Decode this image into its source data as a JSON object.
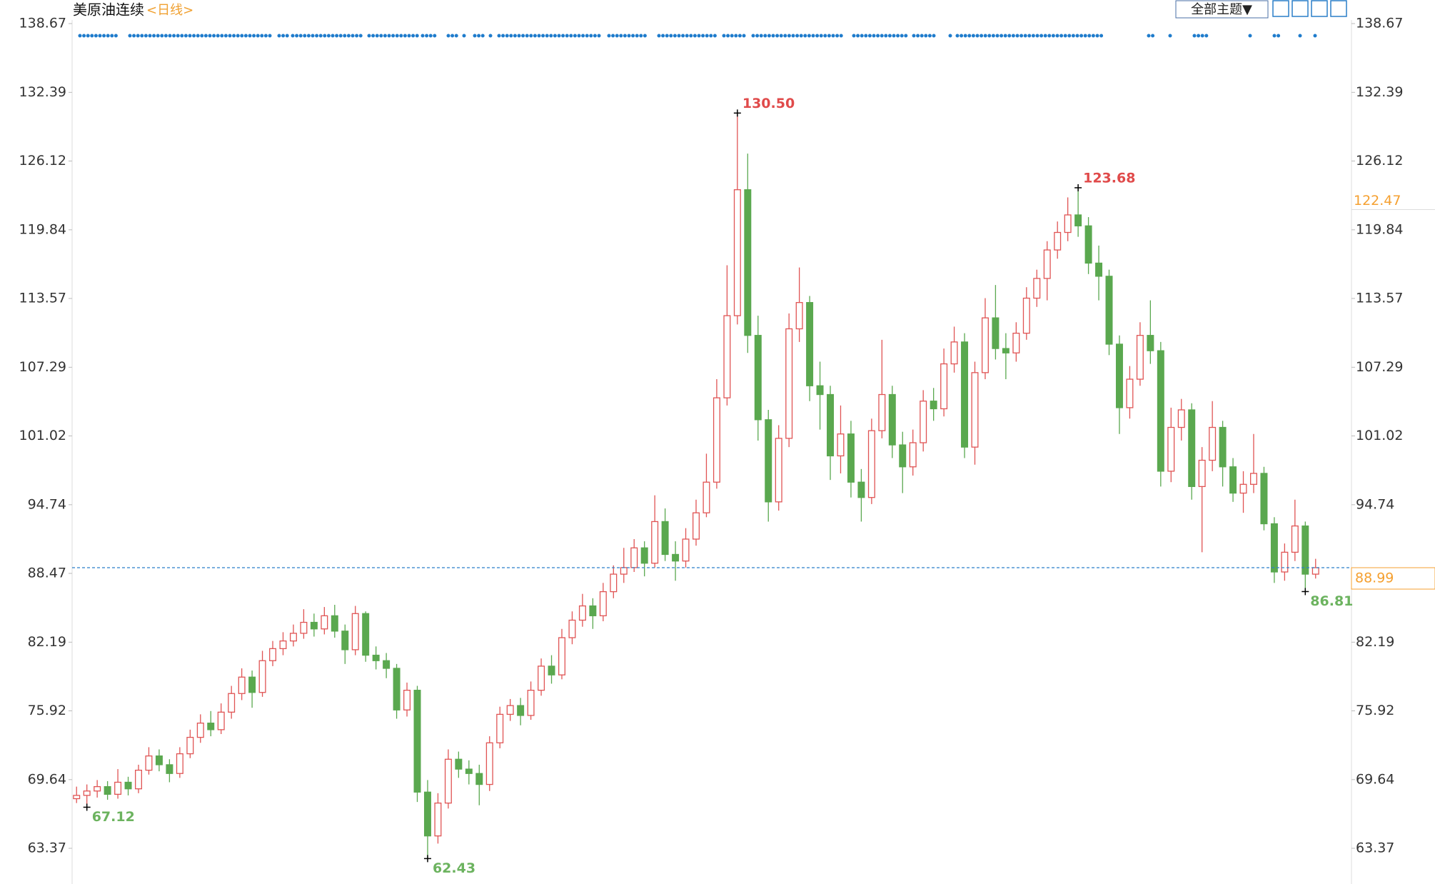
{
  "toolbar": {
    "button": "全部主题▼"
  },
  "chart_data": {
    "type": "candlestick",
    "title": "美原油连续",
    "subtitle": "<日线>",
    "up_color": "#e05454",
    "down_color": "#5aa84f",
    "high_label_color": "#e04a4a",
    "low_label_color": "#6cb35f",
    "price_line_color": "#2a7fc9",
    "marker_color": "#f5a030",
    "ylim": [
      60.37,
      139.91
    ],
    "yticks": [
      63.37,
      69.64,
      75.92,
      82.19,
      88.47,
      94.74,
      101.02,
      107.29,
      113.57,
      119.84,
      126.12,
      132.39,
      138.67
    ],
    "open": [
      67.9,
      68.2,
      68.6,
      69.0,
      68.3,
      69.4,
      68.8,
      70.5,
      71.8,
      71.0,
      70.2,
      72.0,
      73.5,
      74.8,
      74.2,
      75.8,
      77.5,
      79.0,
      77.6,
      80.5,
      81.6,
      82.3,
      83.0,
      84.0,
      83.4,
      84.6,
      83.2,
      81.5,
      84.8,
      81.0,
      80.5,
      79.8,
      76.0,
      77.8,
      68.5,
      64.5,
      67.5,
      71.5,
      70.6,
      70.2,
      69.2,
      73.0,
      75.6,
      76.4,
      75.5,
      77.8,
      80.0,
      79.2,
      82.6,
      84.2,
      85.5,
      84.6,
      86.8,
      88.4,
      89.0,
      90.8,
      89.4,
      93.2,
      90.2,
      89.6,
      91.6,
      94.0,
      96.8,
      104.5,
      112.0,
      123.5,
      110.2,
      102.5,
      95.0,
      100.8,
      110.8,
      113.2,
      105.6,
      104.8,
      99.2,
      101.2,
      96.8,
      95.4,
      101.5,
      104.8,
      100.2,
      98.2,
      100.4,
      104.2,
      103.5,
      107.6,
      109.6,
      100.0,
      106.8,
      111.8,
      109.0,
      108.6,
      110.4,
      113.6,
      115.4,
      118.0,
      119.6,
      121.2,
      120.2,
      116.8,
      115.6,
      109.4,
      103.6,
      106.2,
      110.2,
      108.8,
      97.8,
      101.8,
      103.4,
      96.4,
      98.8,
      101.8,
      98.2,
      95.8,
      96.6,
      97.6,
      93.0,
      88.6,
      90.4,
      92.8,
      88.4
    ],
    "high": [
      69.0,
      69.2,
      69.6,
      69.5,
      70.6,
      69.9,
      71.0,
      72.6,
      72.4,
      71.5,
      72.6,
      74.2,
      75.6,
      75.9,
      76.6,
      78.2,
      79.8,
      79.6,
      81.4,
      82.3,
      83.1,
      83.8,
      85.2,
      84.8,
      85.4,
      85.6,
      83.8,
      85.5,
      85.0,
      81.8,
      81.2,
      80.2,
      78.5,
      78.2,
      69.6,
      68.4,
      72.4,
      72.2,
      71.4,
      71.0,
      73.6,
      76.3,
      77.0,
      77.1,
      78.6,
      80.7,
      81.0,
      83.4,
      85.0,
      86.6,
      86.2,
      87.6,
      89.2,
      90.8,
      91.6,
      91.4,
      95.6,
      94.4,
      91.4,
      92.6,
      95.2,
      99.4,
      106.2,
      116.6,
      130.5,
      126.8,
      112.0,
      103.4,
      102.0,
      112.2,
      116.4,
      113.8,
      107.8,
      105.6,
      103.8,
      102.4,
      98.0,
      102.6,
      109.8,
      105.6,
      101.4,
      101.6,
      105.2,
      105.4,
      109.0,
      111.0,
      110.4,
      107.8,
      113.6,
      114.8,
      110.4,
      111.4,
      114.6,
      116.2,
      118.8,
      120.6,
      122.8,
      123.68,
      121.0,
      118.4,
      116.2,
      110.2,
      107.4,
      111.4,
      113.4,
      109.6,
      103.6,
      104.4,
      104.0,
      100.0,
      104.2,
      102.4,
      99.0,
      97.8,
      101.2,
      98.2,
      93.6,
      91.2,
      95.2,
      93.2,
      89.8
    ],
    "low": [
      67.5,
      67.12,
      68.0,
      67.8,
      67.9,
      68.2,
      68.4,
      70.1,
      70.4,
      69.4,
      69.8,
      71.6,
      73.0,
      73.6,
      73.8,
      75.2,
      76.9,
      76.2,
      77.2,
      80.0,
      81.0,
      81.8,
      82.5,
      82.7,
      82.9,
      82.6,
      80.2,
      81.0,
      80.4,
      79.7,
      78.9,
      75.2,
      75.4,
      67.6,
      62.43,
      63.8,
      67.0,
      69.8,
      69.2,
      67.3,
      68.6,
      72.5,
      75.0,
      74.6,
      75.1,
      77.3,
      78.4,
      78.8,
      82.0,
      83.6,
      83.4,
      84.1,
      86.2,
      87.6,
      88.6,
      88.2,
      89.0,
      89.6,
      87.8,
      89.0,
      91.0,
      93.6,
      96.2,
      103.8,
      111.2,
      108.6,
      100.6,
      93.2,
      94.2,
      100.0,
      109.6,
      104.2,
      101.6,
      97.0,
      97.6,
      95.4,
      93.2,
      94.8,
      100.8,
      99.0,
      95.8,
      97.4,
      99.6,
      102.4,
      102.8,
      106.8,
      99.0,
      98.4,
      106.2,
      108.0,
      106.2,
      107.8,
      109.8,
      112.8,
      113.4,
      117.2,
      118.8,
      119.2,
      115.8,
      113.4,
      108.4,
      101.2,
      102.6,
      105.6,
      107.6,
      96.4,
      96.8,
      100.6,
      95.2,
      90.4,
      97.8,
      96.4,
      95.0,
      94.0,
      95.8,
      92.4,
      87.6,
      87.8,
      89.6,
      86.81,
      88.0
    ],
    "close": [
      68.2,
      68.6,
      69.0,
      68.3,
      69.4,
      68.8,
      70.5,
      71.8,
      71.0,
      70.2,
      72.0,
      73.5,
      74.8,
      74.2,
      75.8,
      77.5,
      79.0,
      77.6,
      80.5,
      81.6,
      82.3,
      83.0,
      84.0,
      83.4,
      84.6,
      83.2,
      81.5,
      84.8,
      81.0,
      80.5,
      79.8,
      76.0,
      77.8,
      68.5,
      64.5,
      67.5,
      71.5,
      70.6,
      70.2,
      69.2,
      73.0,
      75.6,
      76.4,
      75.5,
      77.8,
      80.0,
      79.2,
      82.6,
      84.2,
      85.5,
      84.6,
      86.8,
      88.4,
      89.0,
      90.8,
      89.4,
      93.2,
      90.2,
      89.6,
      91.6,
      94.0,
      96.8,
      104.5,
      112.0,
      123.5,
      110.2,
      102.5,
      95.0,
      100.8,
      110.8,
      113.2,
      105.6,
      104.8,
      99.2,
      101.2,
      96.8,
      95.4,
      101.5,
      104.8,
      100.2,
      98.2,
      100.4,
      104.2,
      103.5,
      107.6,
      109.6,
      100.0,
      106.8,
      111.8,
      109.0,
      108.6,
      110.4,
      113.6,
      115.4,
      118.0,
      119.6,
      121.2,
      120.2,
      116.8,
      115.6,
      109.4,
      103.6,
      106.2,
      110.2,
      108.8,
      97.8,
      101.8,
      103.4,
      96.4,
      98.8,
      101.8,
      98.2,
      95.8,
      96.6,
      97.6,
      93.0,
      88.6,
      90.4,
      92.8,
      88.4,
      88.99
    ],
    "extremes": [
      {
        "value": 130.5,
        "label": "130.50"
      },
      {
        "value": 123.68,
        "label": "123.68"
      },
      {
        "value": 67.12,
        "label": "67.12"
      },
      {
        "value": 62.43,
        "label": "62.43"
      },
      {
        "value": 86.81,
        "label": "86.81"
      }
    ],
    "last_price": 88.99,
    "marker_price": 122.47
  }
}
